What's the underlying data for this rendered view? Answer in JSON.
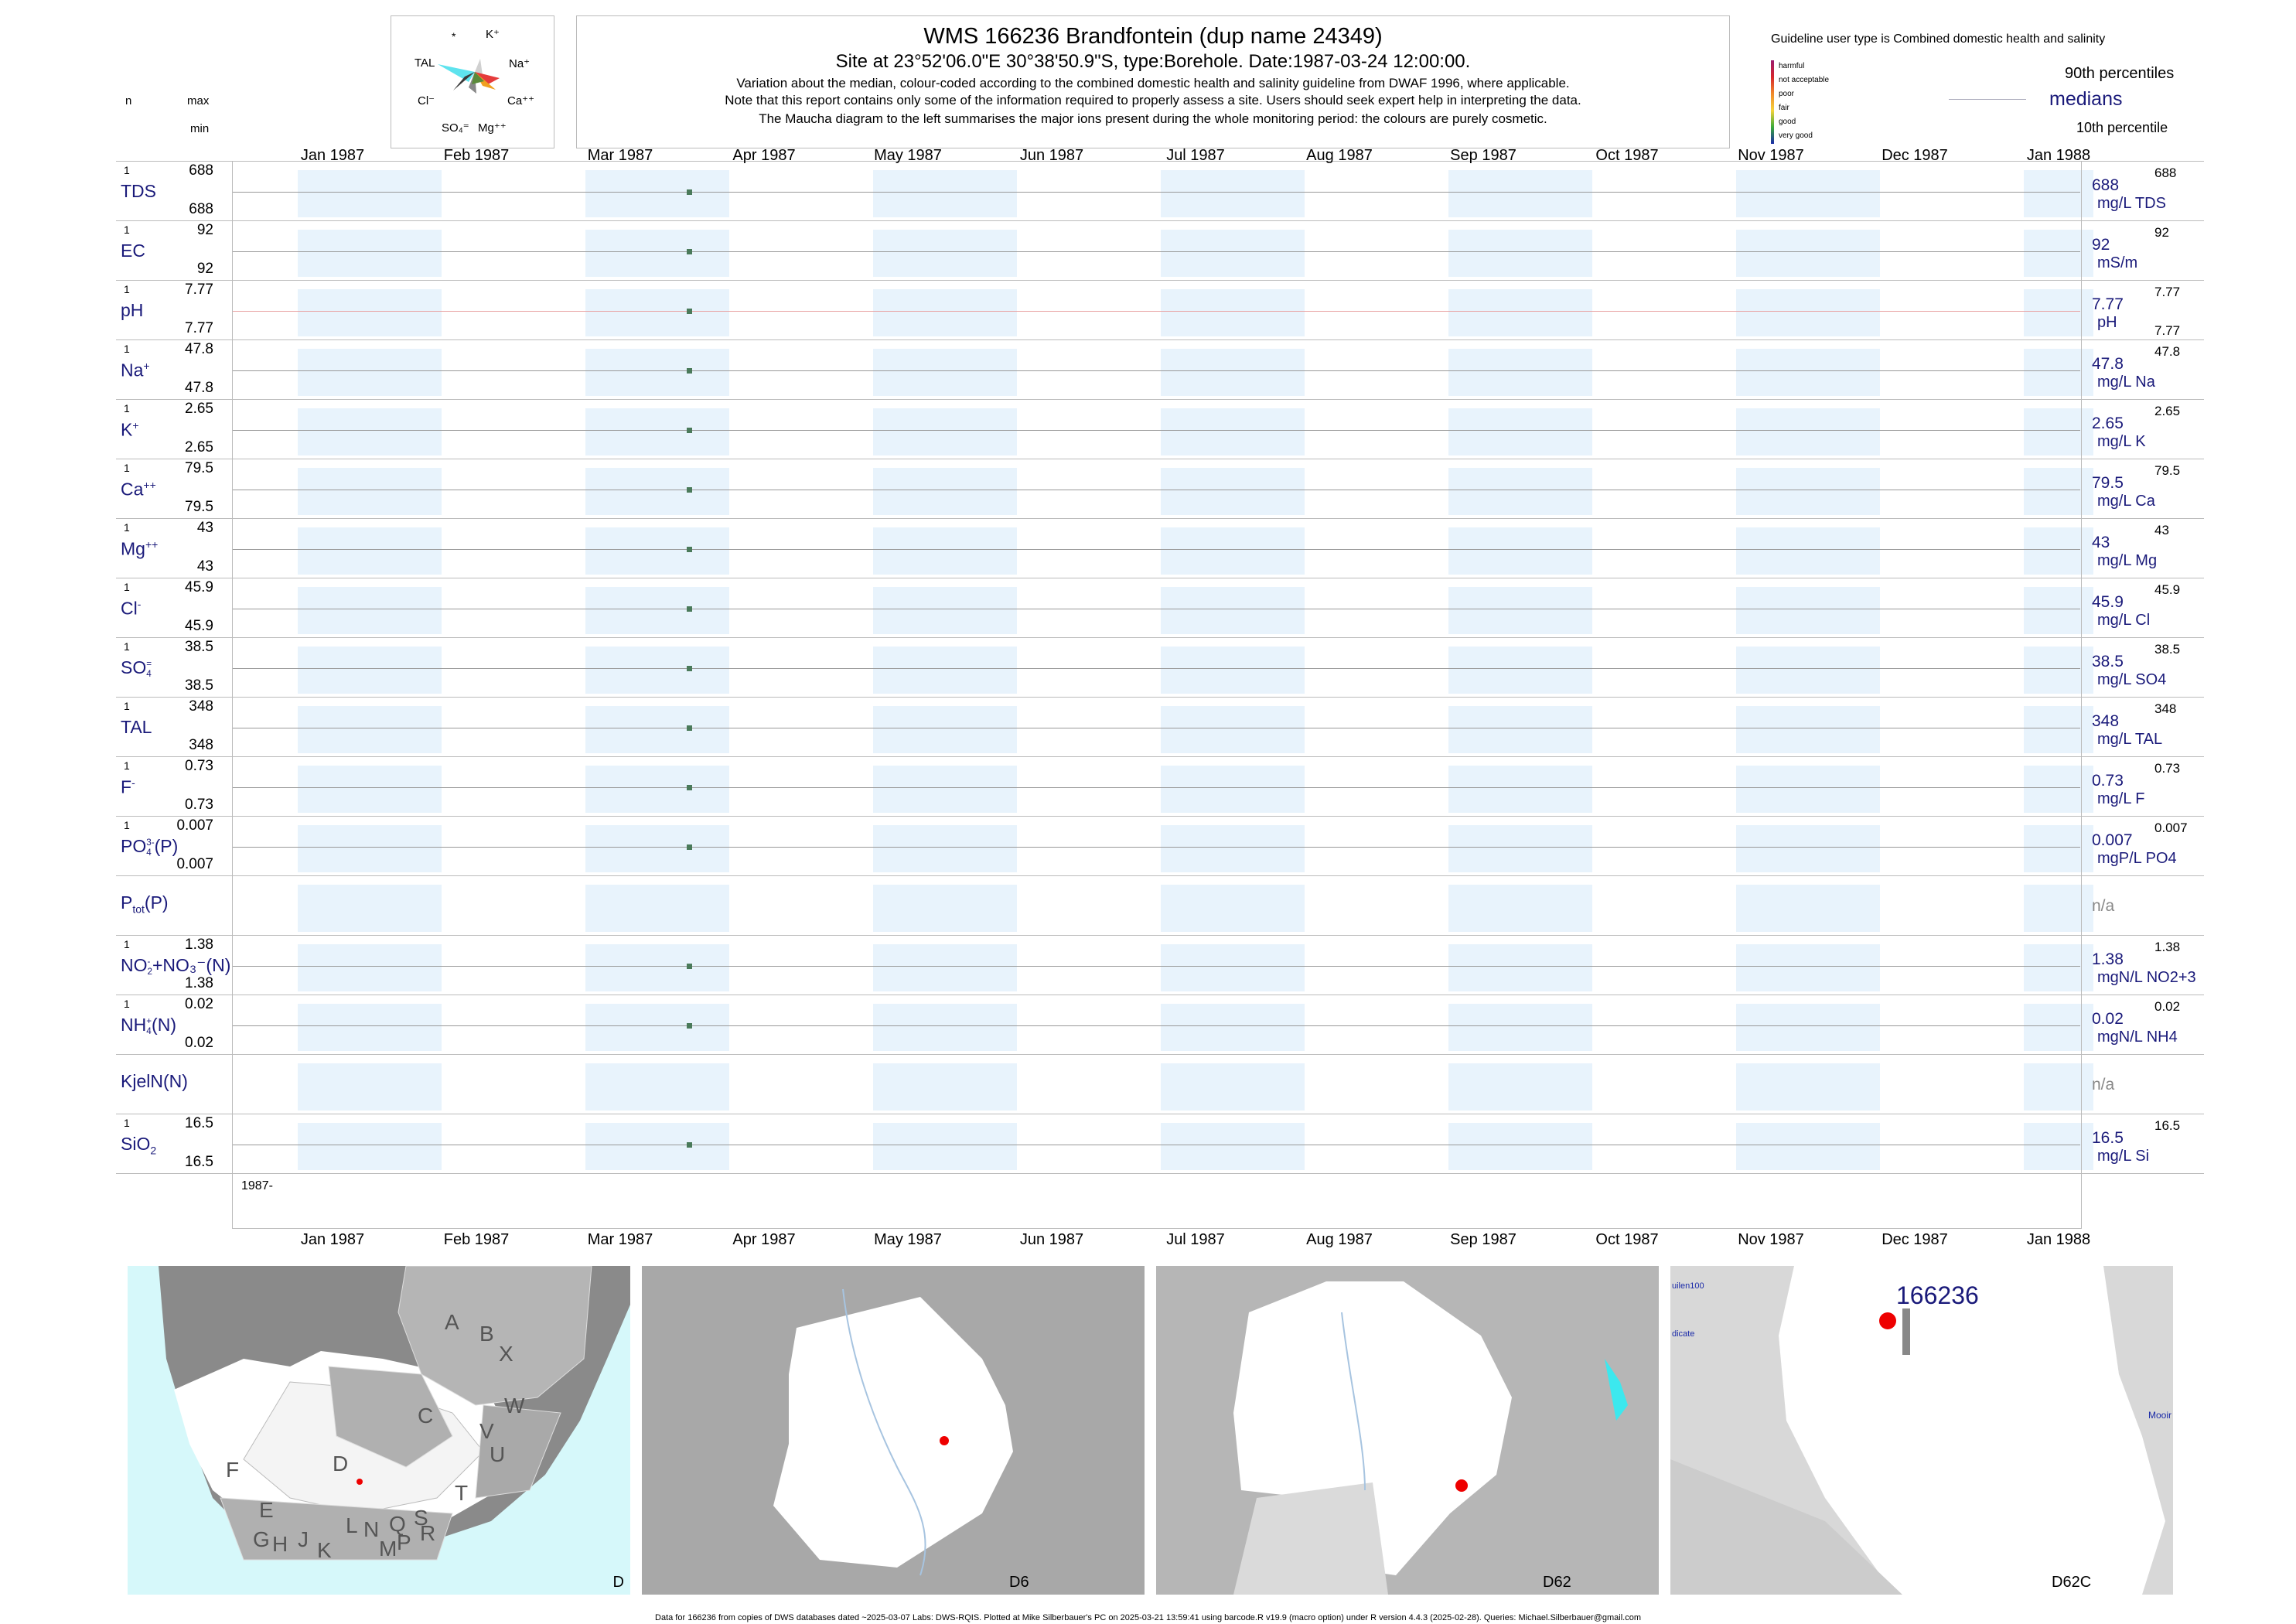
{
  "header": {
    "title": "WMS 166236  Brandfontein (dup name 24349)",
    "subtitle": "Site at 23°52'06.0\"E 30°38'50.9\"S, type:Borehole. Date:1987-03-24 12:00:00.",
    "note1": "Variation about the median,  colour-coded according to the combined domestic health and salinity guideline from DWAF 1996, where applicable.",
    "note2": "Note that this report contains only some of the information required to properly assess a site. Users should seek expert help in interpreting the data.",
    "note3": "The Maucha diagram to the left summarises the major ions present during the whole monitoring period: the colours are purely cosmetic."
  },
  "maucha": {
    "labels": [
      "*",
      "K⁺",
      "TAL",
      "Na⁺",
      "Cl⁻",
      "Ca⁺⁺",
      "SO₄⁼",
      "Mg⁺⁺"
    ]
  },
  "left_header": {
    "n": "n",
    "max": "max",
    "min": "min"
  },
  "legend": {
    "guideline": "Guideline user type is Combined domestic health and salinity",
    "levels": [
      {
        "label": "harmful",
        "color": "#9b1a6e"
      },
      {
        "label": "not acceptable",
        "color": "#d6262c"
      },
      {
        "label": "poor",
        "color": "#f08a2c"
      },
      {
        "label": "fair",
        "color": "#f5d33c"
      },
      {
        "label": "good",
        "color": "#3aaa3a"
      },
      {
        "label": "very good",
        "color": "#1a2aa8"
      }
    ],
    "p90": "90th percentiles",
    "medians": "medians",
    "p10": "10th percentile"
  },
  "months": [
    "Jan 1987",
    "Feb 1987",
    "Mar 1987",
    "Apr 1987",
    "May 1987",
    "Jun 1987",
    "Jul 1987",
    "Aug 1987",
    "Sep 1987",
    "Oct 1987",
    "Nov 1987",
    "Dec 1987",
    "Jan 1988"
  ],
  "year_label": "1987-",
  "chart_data": {
    "type": "scatter",
    "x_date": "1987-03-24",
    "xlim": [
      "1987-01-01",
      "1988-01-01"
    ],
    "params": [
      {
        "name": "TDS",
        "sup": "",
        "sub": "",
        "n": "1",
        "max": "688",
        "min": "688",
        "median": "688",
        "unit": "mg/L TDS",
        "rmax": "688",
        "rmin": "",
        "value": 688
      },
      {
        "name": "EC",
        "sup": "",
        "sub": "",
        "n": "1",
        "max": "92",
        "min": "92",
        "median": "92",
        "unit": "mS/m",
        "rmax": "92",
        "rmin": "",
        "value": 92
      },
      {
        "name": "pH",
        "sup": "",
        "sub": "",
        "n": "1",
        "max": "7.77",
        "min": "7.77",
        "median": "7.77",
        "unit": "pH",
        "rmax": "7.77",
        "rmin": "7.77",
        "value": 7.77
      },
      {
        "name": "Na",
        "sup": "+",
        "sub": "",
        "n": "1",
        "max": "47.8",
        "min": "47.8",
        "median": "47.8",
        "unit": "mg/L Na",
        "rmax": "47.8",
        "rmin": "",
        "value": 47.8
      },
      {
        "name": "K",
        "sup": "+",
        "sub": "",
        "n": "1",
        "max": "2.65",
        "min": "2.65",
        "median": "2.65",
        "unit": "mg/L K",
        "rmax": "2.65",
        "rmin": "",
        "value": 2.65
      },
      {
        "name": "Ca",
        "sup": "++",
        "sub": "",
        "n": "1",
        "max": "79.5",
        "min": "79.5",
        "median": "79.5",
        "unit": "mg/L Ca",
        "rmax": "79.5",
        "rmin": "",
        "value": 79.5
      },
      {
        "name": "Mg",
        "sup": "++",
        "sub": "",
        "n": "1",
        "max": "43",
        "min": "43",
        "median": "43",
        "unit": "mg/L Mg",
        "rmax": "43",
        "rmin": "",
        "value": 43
      },
      {
        "name": "Cl",
        "sup": "-",
        "sub": "",
        "n": "1",
        "max": "45.9",
        "min": "45.9",
        "median": "45.9",
        "unit": "mg/L Cl",
        "rmax": "45.9",
        "rmin": "",
        "value": 45.9
      },
      {
        "name": "SO",
        "sup": "=",
        "sub": "4",
        "n": "1",
        "max": "38.5",
        "min": "38.5",
        "median": "38.5",
        "unit": "mg/L SO4",
        "rmax": "38.5",
        "rmin": "",
        "value": 38.5
      },
      {
        "name": "TAL",
        "sup": "",
        "sub": "",
        "n": "1",
        "max": "348",
        "min": "348",
        "median": "348",
        "unit": "mg/L TAL",
        "rmax": "348",
        "rmin": "",
        "value": 348
      },
      {
        "name": "F",
        "sup": "-",
        "sub": "",
        "n": "1",
        "max": "0.73",
        "min": "0.73",
        "median": "0.73",
        "unit": "mg/L F",
        "rmax": "0.73",
        "rmin": "",
        "value": 0.73
      },
      {
        "name": "PO",
        "sup": "3-",
        "sub": "4",
        "suffix": "(P)",
        "n": "1",
        "max": "0.007",
        "min": "0.007",
        "median": "0.007",
        "unit": "mgP/L PO4",
        "rmax": "0.007",
        "rmin": "",
        "value": 0.007
      },
      {
        "name": "P",
        "sup": "",
        "sub": "tot",
        "suffix": "(P)",
        "n": "",
        "max": "",
        "min": "",
        "median": "n/a",
        "unit": "",
        "rmax": "",
        "rmin": "",
        "value": null
      },
      {
        "name": "NO",
        "sup": "-",
        "sub": "2",
        "suffix": "+NO₃⁻(N)",
        "n": "1",
        "max": "1.38",
        "min": "1.38",
        "median": "1.38",
        "unit": "mgN/L NO2+3",
        "rmax": "1.38",
        "rmin": "",
        "value": 1.38
      },
      {
        "name": "NH",
        "sup": "+",
        "sub": "4",
        "suffix": "(N)",
        "n": "1",
        "max": "0.02",
        "min": "0.02",
        "median": "0.02",
        "unit": "mgN/L NH4",
        "rmax": "0.02",
        "rmin": "",
        "value": 0.02
      },
      {
        "name": "KjelN(N)",
        "sup": "",
        "sub": "",
        "n": "",
        "max": "",
        "min": "",
        "median": "n/a",
        "unit": "",
        "rmax": "",
        "rmin": "",
        "value": null
      },
      {
        "name": "SiO",
        "sup": "",
        "sub": "2",
        "n": "1",
        "max": "16.5",
        "min": "16.5",
        "median": "16.5",
        "unit": "mg/L Si",
        "rmax": "16.5",
        "rmin": "",
        "value": 16.5
      }
    ]
  },
  "maps": {
    "m1_label": "D",
    "m2_label": "D6",
    "m3_label": "D62",
    "m4_label": "D62C",
    "site_id": "166236",
    "m4_left1": "uilen100",
    "m4_left2": "dicate",
    "m4_right": "Mooir",
    "regions": [
      "A",
      "B",
      "X",
      "W",
      "C",
      "V",
      "U",
      "T",
      "D",
      "F",
      "E",
      "G",
      "H",
      "J",
      "K",
      "L",
      "N",
      "M",
      "Q",
      "P",
      "S",
      "R"
    ]
  },
  "footer": "Data for 166236 from copies of DWS databases dated ~2025-03-07 Labs: DWS-RQIS. Plotted at Mike Silberbauer's PC on 2025-03-21 13:59:41 using barcode.R v19.9 (macro option) under R version 4.4.3 (2025-02-28). Queries: Michael.Silberbauer@gmail.com",
  "colors": {
    "band": "#e8f3fc",
    "marker": "#4a7a5a",
    "label": "#1a1a7a",
    "ocean": "#d6f8fa"
  }
}
